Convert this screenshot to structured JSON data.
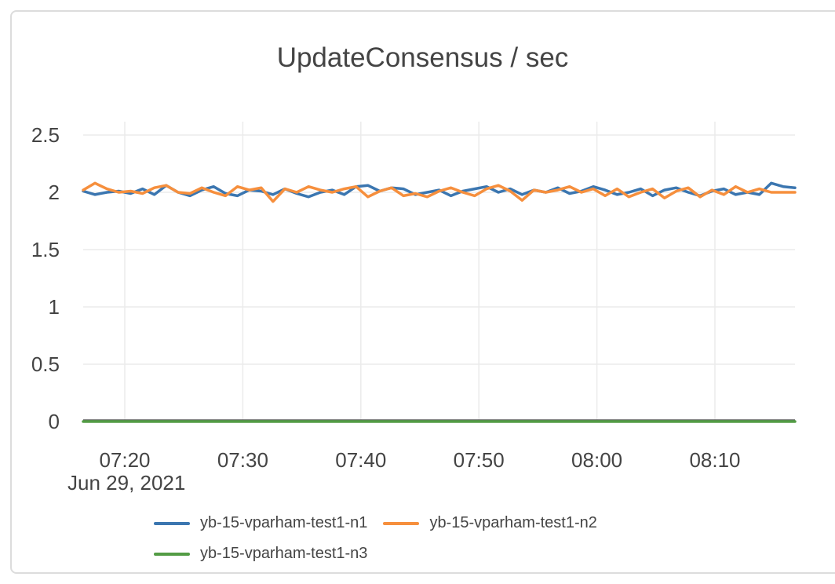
{
  "chart_data": {
    "type": "line",
    "title": "UpdateConsensus / sec",
    "x_axis": {
      "tick_labels": [
        "07:20",
        "07:30",
        "07:40",
        "07:50",
        "08:00",
        "08:10"
      ],
      "date_label": "Jun 29, 2021",
      "start": "07:17",
      "end": "08:17",
      "point_interval_minutes": 1
    },
    "y_axis": {
      "tick_labels": [
        "0",
        "0.5",
        "1",
        "1.5",
        "2",
        "2.5"
      ],
      "tick_values": [
        0,
        0.5,
        1,
        1.5,
        2,
        2.5
      ],
      "range": [
        0,
        2.62
      ],
      "grid": true
    },
    "legend_position": "bottom",
    "series": [
      {
        "name": "yb-15-vparham-test1-n1",
        "color": "#3b76b0",
        "values": [
          2.01,
          1.98,
          2.0,
          2.01,
          1.99,
          2.03,
          1.98,
          2.06,
          2.0,
          1.97,
          2.02,
          2.05,
          1.99,
          1.97,
          2.02,
          2.01,
          1.98,
          2.03,
          1.99,
          1.96,
          2.0,
          2.02,
          1.98,
          2.05,
          2.06,
          2.01,
          2.04,
          2.03,
          1.98,
          2.0,
          2.02,
          1.97,
          2.01,
          2.03,
          2.05,
          2.0,
          2.03,
          1.98,
          2.02,
          2.0,
          2.04,
          1.99,
          2.01,
          2.05,
          2.02,
          1.98,
          2.0,
          2.03,
          1.97,
          2.02,
          2.04,
          2.0,
          1.97,
          2.01,
          2.03,
          1.98,
          2.0,
          1.98,
          2.08,
          2.05,
          2.04
        ]
      },
      {
        "name": "yb-15-vparham-test1-n2",
        "color": "#f68f3d",
        "values": [
          2.02,
          2.08,
          2.03,
          2.0,
          2.01,
          1.99,
          2.04,
          2.06,
          2.0,
          1.99,
          2.04,
          2.0,
          1.97,
          2.05,
          2.02,
          2.04,
          1.92,
          2.03,
          2.0,
          2.05,
          2.02,
          2.0,
          2.03,
          2.05,
          1.96,
          2.01,
          2.04,
          1.97,
          1.99,
          1.96,
          2.01,
          2.04,
          2.0,
          1.97,
          2.03,
          2.06,
          2.01,
          1.93,
          2.02,
          2.0,
          2.02,
          2.05,
          2.0,
          2.03,
          1.97,
          2.03,
          1.96,
          2.0,
          2.03,
          1.95,
          2.01,
          2.04,
          1.96,
          2.02,
          1.98,
          2.05,
          2.0,
          2.03,
          2.0,
          2.0,
          2.0
        ]
      },
      {
        "name": "yb-15-vparham-test1-n3",
        "color": "#539c45",
        "values": [
          0,
          0,
          0,
          0,
          0,
          0,
          0,
          0,
          0,
          0,
          0,
          0,
          0,
          0,
          0,
          0,
          0,
          0,
          0,
          0,
          0,
          0,
          0,
          0,
          0,
          0,
          0,
          0,
          0,
          0,
          0,
          0,
          0,
          0,
          0,
          0,
          0,
          0,
          0,
          0,
          0,
          0,
          0,
          0,
          0,
          0,
          0,
          0,
          0,
          0,
          0,
          0,
          0,
          0,
          0,
          0,
          0,
          0,
          0,
          0,
          0
        ]
      }
    ]
  },
  "colors": {
    "text": "#444444",
    "grid": "#ebebeb",
    "zeroline": "#606060",
    "card_border": "#dcdcdc",
    "background": "#ffffff"
  }
}
